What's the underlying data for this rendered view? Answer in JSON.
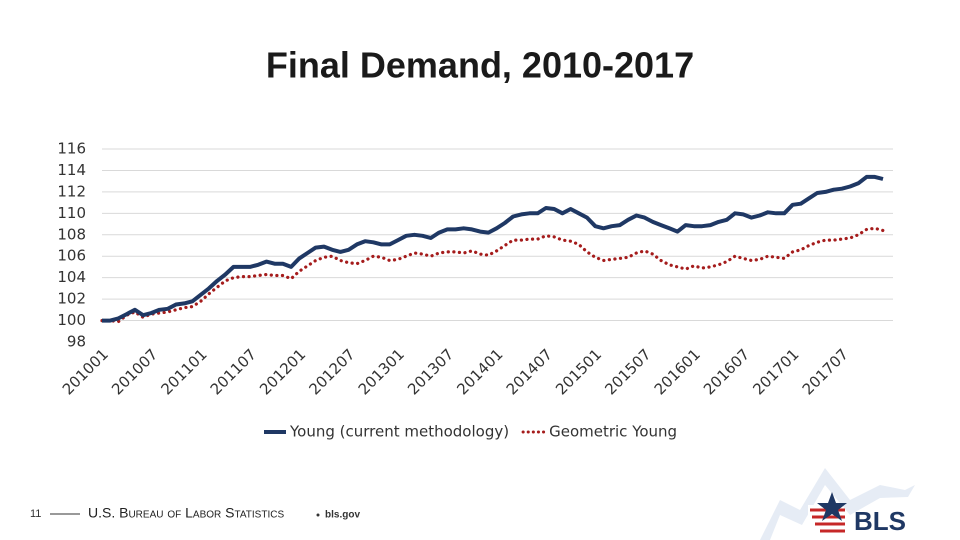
{
  "chart_data": {
    "type": "line",
    "title": "Final Demand, 2010-2017",
    "categories": [
      "201001",
      null,
      null,
      null,
      null,
      null,
      "201007",
      null,
      null,
      null,
      null,
      null,
      "201101",
      null,
      null,
      null,
      null,
      null,
      "201107",
      null,
      null,
      null,
      null,
      null,
      "201201",
      null,
      null,
      null,
      null,
      null,
      "201207",
      null,
      null,
      null,
      null,
      null,
      "201301",
      null,
      null,
      null,
      null,
      null,
      "201307",
      null,
      null,
      null,
      null,
      null,
      "201401",
      null,
      null,
      null,
      null,
      null,
      "201407",
      null,
      null,
      null,
      null,
      null,
      "201501",
      null,
      null,
      null,
      null,
      null,
      "201507",
      null,
      null,
      null,
      null,
      null,
      "201601",
      null,
      null,
      null,
      null,
      null,
      "201607",
      null,
      null,
      null,
      null,
      null,
      "201701",
      null,
      null,
      null,
      null,
      null,
      "201707",
      null,
      null,
      null,
      null,
      null
    ],
    "series": [
      {
        "name": "Young (current methodology)",
        "color": "#1f3864",
        "style": "solid",
        "values": [
          100.0,
          100.0,
          100.2,
          100.6,
          101.0,
          100.5,
          100.7,
          101.0,
          101.1,
          101.5,
          101.6,
          101.8,
          102.4,
          103.0,
          103.7,
          104.3,
          105.0,
          105.0,
          105.0,
          105.2,
          105.5,
          105.3,
          105.3,
          105.0,
          105.8,
          106.3,
          106.8,
          106.9,
          106.6,
          106.4,
          106.6,
          107.1,
          107.4,
          107.3,
          107.1,
          107.1,
          107.5,
          107.9,
          108.0,
          107.9,
          107.7,
          108.2,
          108.5,
          108.5,
          108.6,
          108.5,
          108.3,
          108.2,
          108.6,
          109.1,
          109.7,
          109.9,
          110.0,
          110.0,
          110.5,
          110.4,
          110.0,
          110.4,
          110.0,
          109.6,
          108.8,
          108.6,
          108.8,
          108.9,
          109.4,
          109.8,
          109.6,
          109.2,
          108.9,
          108.6,
          108.3,
          108.9,
          108.8,
          108.8,
          108.9,
          109.2,
          109.4,
          110.0,
          109.9,
          109.6,
          109.8,
          110.1,
          110.0,
          110.0,
          110.8,
          110.9,
          111.4,
          111.9,
          112.0,
          112.2,
          112.3,
          112.5,
          112.8,
          113.4,
          113.4,
          113.2
        ]
      },
      {
        "name": "Geometric Young",
        "color": "#a51c1c",
        "style": "dotted",
        "values": [
          100.0,
          100.0,
          99.9,
          100.5,
          100.8,
          100.3,
          100.6,
          100.7,
          100.8,
          101.0,
          101.2,
          101.3,
          101.8,
          102.5,
          103.1,
          103.7,
          104.0,
          104.1,
          104.1,
          104.2,
          104.3,
          104.2,
          104.2,
          103.9,
          104.6,
          105.1,
          105.6,
          105.9,
          106.0,
          105.6,
          105.4,
          105.3,
          105.6,
          106.0,
          105.9,
          105.6,
          105.7,
          106.0,
          106.3,
          106.2,
          106.0,
          106.3,
          106.4,
          106.4,
          106.3,
          106.5,
          106.2,
          106.1,
          106.5,
          107.0,
          107.5,
          107.5,
          107.6,
          107.6,
          107.9,
          107.8,
          107.5,
          107.4,
          107.1,
          106.4,
          105.9,
          105.6,
          105.7,
          105.8,
          105.9,
          106.3,
          106.5,
          106.2,
          105.6,
          105.2,
          105.0,
          104.8,
          105.1,
          104.9,
          105.0,
          105.2,
          105.5,
          106.0,
          105.8,
          105.6,
          105.7,
          106.0,
          105.9,
          105.8,
          106.4,
          106.6,
          107.0,
          107.3,
          107.5,
          107.5,
          107.6,
          107.7,
          108.0,
          108.5,
          108.6,
          108.4
        ]
      }
    ],
    "ylim": [
      98,
      116
    ],
    "yticks": [
      98,
      100,
      102,
      104,
      106,
      108,
      110,
      112,
      114,
      116
    ],
    "grid": true,
    "legend": "bottom"
  },
  "footer": {
    "page": "11",
    "agency": "U.S. Bureau of Labor Statistics",
    "site": "bls.gov",
    "logo": "BLS"
  }
}
